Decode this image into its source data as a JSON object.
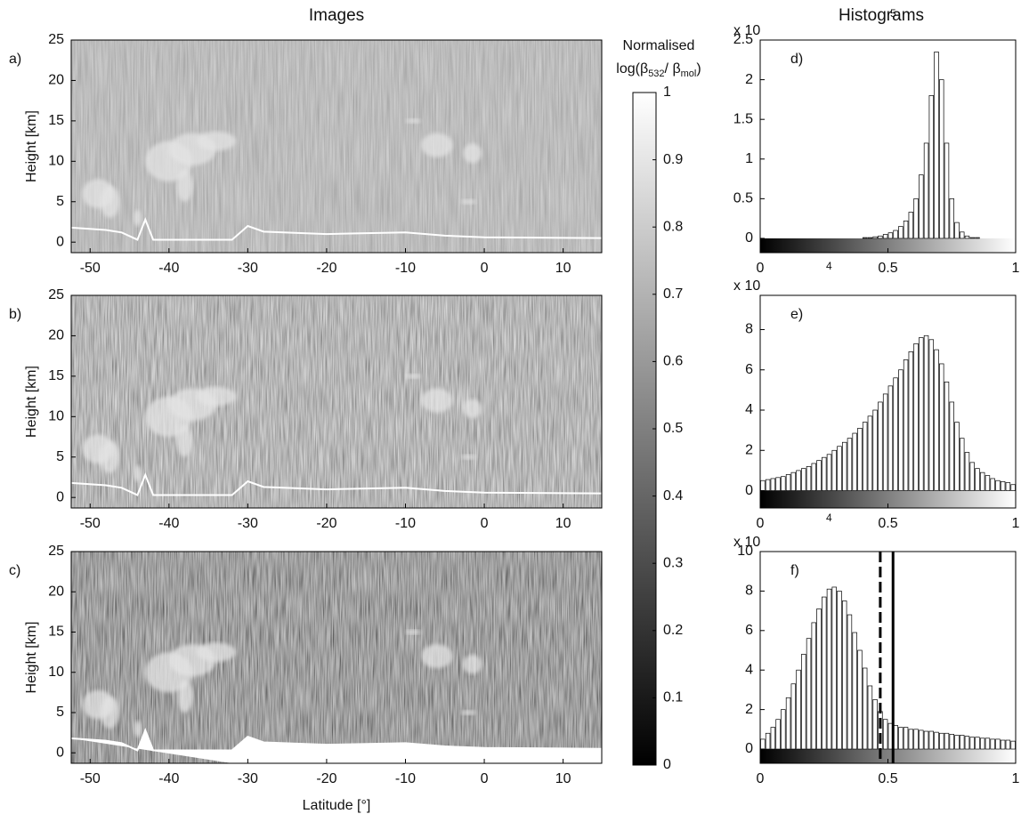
{
  "titles": {
    "images": "Images",
    "histograms": "Histograms"
  },
  "colorbar": {
    "title": "Normalised",
    "label_parts": [
      "log(β",
      "532",
      "/ β",
      "mol",
      ")"
    ],
    "lim": [
      0,
      1
    ],
    "ticks": [
      0,
      0.1,
      0.2,
      0.3,
      0.4,
      0.5,
      0.6,
      0.7,
      0.8,
      0.9,
      1
    ]
  },
  "chart_data": [
    {
      "type": "image",
      "panel_label": "a)",
      "ylabel": "Height [km]",
      "xlim": [
        -52.4,
        14.9
      ],
      "ylim": [
        -1.3,
        25
      ],
      "xticks": [
        -50,
        -40,
        -30,
        -20,
        -10,
        0,
        10
      ],
      "yticks": [
        0,
        5,
        10,
        15,
        20,
        25
      ]
    },
    {
      "type": "image",
      "panel_label": "b)",
      "ylabel": "Height [km]",
      "xlim": [
        -52.4,
        14.9
      ],
      "ylim": [
        -1.3,
        25
      ],
      "xticks": [
        -50,
        -40,
        -30,
        -20,
        -10,
        0,
        10
      ],
      "yticks": [
        0,
        5,
        10,
        15,
        20,
        25
      ]
    },
    {
      "type": "image",
      "panel_label": "c)",
      "ylabel": "Height [km]",
      "xlabel": "Latitude [°]",
      "xlim": [
        -52.4,
        14.9
      ],
      "ylim": [
        -1.3,
        25
      ],
      "xticks": [
        -50,
        -40,
        -30,
        -20,
        -10,
        0,
        10
      ],
      "yticks": [
        0,
        5,
        10,
        15,
        20,
        25
      ]
    },
    {
      "type": "histogram",
      "panel_label": "d)",
      "scale_label": "x 10",
      "scale_exponent": "5",
      "xlim": [
        0,
        1
      ],
      "ylim": [
        -0.18,
        2.5
      ],
      "xticks": [
        0,
        0.5,
        1
      ],
      "yticks": [
        0,
        0.5,
        1,
        1.5,
        2,
        2.5
      ],
      "bins": [
        0,
        0.02,
        0.04,
        0.06,
        0.08,
        0.1,
        0.12,
        0.14,
        0.16,
        0.18,
        0.2,
        0.22,
        0.24,
        0.26,
        0.28,
        0.3,
        0.32,
        0.34,
        0.36,
        0.38,
        0.4,
        0.42,
        0.44,
        0.46,
        0.48,
        0.5,
        0.52,
        0.54,
        0.56,
        0.58,
        0.6,
        0.62,
        0.64,
        0.66,
        0.68,
        0.7,
        0.72,
        0.74,
        0.76,
        0.78,
        0.8,
        0.82,
        0.84,
        0.86,
        0.88,
        0.9,
        0.92,
        0.94,
        0.96,
        0.98,
        1
      ],
      "values": [
        0,
        0,
        0,
        0,
        0,
        0,
        0,
        0,
        0,
        0,
        0,
        0,
        0,
        0,
        0,
        0,
        0,
        0,
        0,
        0,
        0.01,
        0.01,
        0.02,
        0.03,
        0.05,
        0.07,
        0.1,
        0.15,
        0.22,
        0.33,
        0.5,
        0.8,
        1.2,
        1.8,
        2.35,
        2.0,
        1.2,
        0.5,
        0.2,
        0.08,
        0.03,
        0.01,
        0.01,
        0,
        0,
        0,
        0,
        0,
        0,
        0
      ]
    },
    {
      "type": "histogram",
      "panel_label": "e)",
      "scale_label": "x 10",
      "scale_exponent": "4",
      "xlim": [
        0,
        1
      ],
      "ylim": [
        -0.86,
        9.7
      ],
      "xticks": [
        0,
        0.5,
        1
      ],
      "yticks": [
        0,
        2,
        4,
        6,
        8
      ],
      "bins": [
        0,
        0.02,
        0.04,
        0.06,
        0.08,
        0.1,
        0.12,
        0.14,
        0.16,
        0.18,
        0.2,
        0.22,
        0.24,
        0.26,
        0.28,
        0.3,
        0.32,
        0.34,
        0.36,
        0.38,
        0.4,
        0.42,
        0.44,
        0.46,
        0.48,
        0.5,
        0.52,
        0.54,
        0.56,
        0.58,
        0.6,
        0.62,
        0.64,
        0.66,
        0.68,
        0.7,
        0.72,
        0.74,
        0.76,
        0.78,
        0.8,
        0.82,
        0.84,
        0.86,
        0.88,
        0.9,
        0.92,
        0.94,
        0.96,
        0.98,
        1
      ],
      "values": [
        0.5,
        0.55,
        0.6,
        0.65,
        0.7,
        0.8,
        0.9,
        1.0,
        1.1,
        1.2,
        1.35,
        1.5,
        1.65,
        1.8,
        2.0,
        2.2,
        2.4,
        2.6,
        2.85,
        3.1,
        3.4,
        3.7,
        4.0,
        4.4,
        4.8,
        5.2,
        5.6,
        6.0,
        6.5,
        6.9,
        7.3,
        7.6,
        7.7,
        7.5,
        7.0,
        6.3,
        5.4,
        4.4,
        3.4,
        2.6,
        1.9,
        1.4,
        1.1,
        0.9,
        0.75,
        0.6,
        0.5,
        0.45,
        0.4,
        0.3
      ]
    },
    {
      "type": "histogram",
      "panel_label": "f)",
      "scale_label": "x 10",
      "scale_exponent": "4",
      "xlim": [
        0,
        1
      ],
      "ylim": [
        -0.72,
        10
      ],
      "xticks": [
        0,
        0.5,
        1
      ],
      "yticks": [
        0,
        2,
        4,
        6,
        8,
        10
      ],
      "bins": [
        0,
        0.02,
        0.04,
        0.06,
        0.08,
        0.1,
        0.12,
        0.14,
        0.16,
        0.18,
        0.2,
        0.22,
        0.24,
        0.26,
        0.28,
        0.3,
        0.32,
        0.34,
        0.36,
        0.38,
        0.4,
        0.42,
        0.44,
        0.46,
        0.48,
        0.5,
        0.52,
        0.54,
        0.56,
        0.58,
        0.6,
        0.62,
        0.64,
        0.66,
        0.68,
        0.7,
        0.72,
        0.74,
        0.76,
        0.78,
        0.8,
        0.82,
        0.84,
        0.86,
        0.88,
        0.9,
        0.92,
        0.94,
        0.96,
        0.98,
        1
      ],
      "values": [
        0.5,
        0.8,
        1.1,
        1.5,
        2.0,
        2.6,
        3.3,
        4.0,
        4.8,
        5.6,
        6.4,
        7.1,
        7.7,
        8.1,
        8.2,
        8.0,
        7.5,
        6.8,
        5.9,
        5.0,
        4.1,
        3.2,
        2.5,
        1.9,
        1.5,
        1.3,
        1.2,
        1.1,
        1.1,
        1.0,
        1.0,
        0.95,
        0.9,
        0.9,
        0.85,
        0.8,
        0.8,
        0.75,
        0.7,
        0.7,
        0.65,
        0.6,
        0.6,
        0.55,
        0.55,
        0.5,
        0.5,
        0.45,
        0.45,
        0.4
      ],
      "thresholds": [
        {
          "x": 0.47,
          "dashed": true
        },
        {
          "x": 0.52,
          "dashed": false
        }
      ]
    }
  ]
}
